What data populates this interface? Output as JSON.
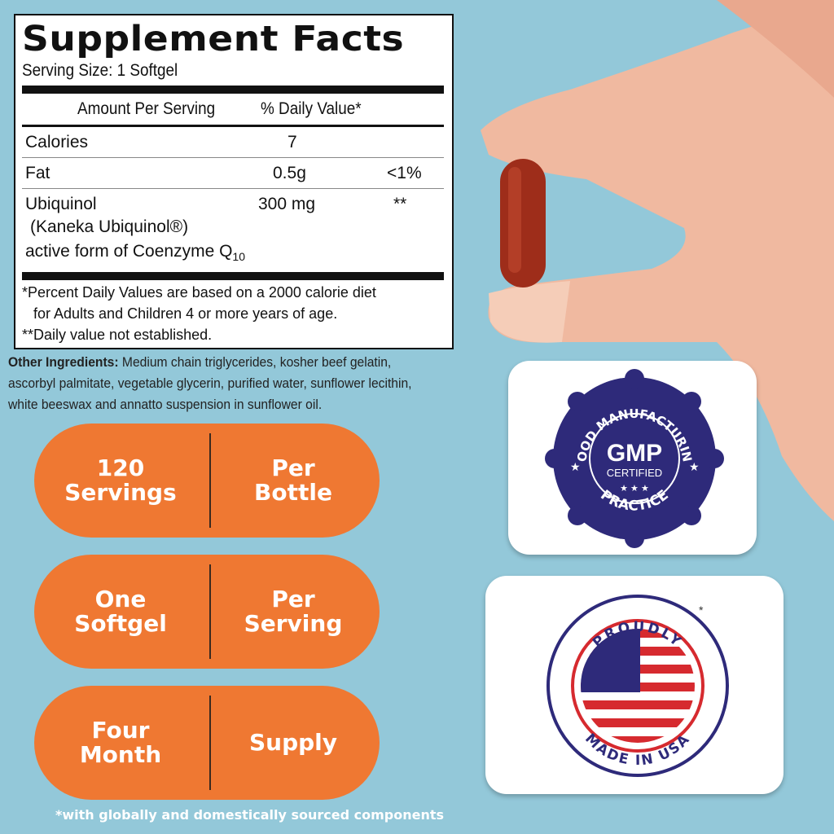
{
  "label": {
    "title": "Supplement Facts",
    "serving_size": "Serving Size: 1 Softgel",
    "col_amount": "Amount Per Serving",
    "col_dv": "% Daily Value*",
    "rows": [
      {
        "name": "Calories",
        "amount": "7",
        "dv": ""
      },
      {
        "name": "Fat",
        "amount": "0.5g",
        "dv": "<1%"
      },
      {
        "name": "Ubiquinol",
        "amount": "300 mg",
        "dv": "**"
      }
    ],
    "ubiquinol_line2": "(Kaneka Ubiquinol®)",
    "ubiquinol_line3": "active form of Coenzyme Q",
    "ubiquinol_sub": "10",
    "footnote1": "*Percent Daily Values are based on a 2000 calorie diet",
    "footnote1b": "for Adults and Children 4 or more years of age.",
    "footnote2": "**Daily value not established."
  },
  "ingredients": {
    "label": "Other Ingredients:",
    "text": " Medium chain triglycerides, kosher beef gelatin, ascorbyl palmitate, vegetable glycerin, purified water, sunflower lecithin, white beeswax and annatto suspension in sunflower oil."
  },
  "pills": [
    {
      "left1": "120",
      "left2": "Servings",
      "right1": "Per",
      "right2": "Bottle"
    },
    {
      "left1": "One",
      "left2": "Softgel",
      "right1": "Per",
      "right2": "Serving"
    },
    {
      "left1": "Four",
      "left2": "Month",
      "right1": "Supply",
      "right2": ""
    }
  ],
  "badges": {
    "gmp": {
      "top": "GOOD MANUFACTURING",
      "center": "GMP",
      "sub": "CERTIFIED",
      "bottom": "PRACTICE"
    },
    "usa": {
      "top": "PROUDLY",
      "bottom": "MADE IN USA",
      "asterisk": "*"
    }
  },
  "footnote": "*with globally and domestically sourced components",
  "colors": {
    "background": "#93c8d9",
    "pill": "#ef7832",
    "badge_navy": "#2e2a7a",
    "flag_red": "#d62a2f"
  }
}
